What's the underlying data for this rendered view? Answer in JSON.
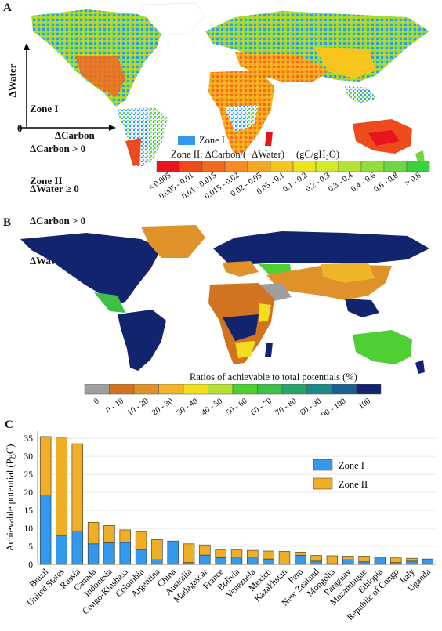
{
  "panels": {
    "a": "A",
    "b": "B",
    "c": "C"
  },
  "panel_a": {
    "zone1_lines": [
      "Zone I",
      "ΔCarbon > 0",
      "ΔWater ≥ 0"
    ],
    "zone2_lines": [
      "Zone II",
      "ΔCarbon > 0",
      "ΔWater < 0"
    ],
    "y_axis": "ΔWater",
    "x_axis": "ΔCarbon",
    "origin": "0",
    "zone1_legend": "Zone I",
    "zone1_color": "#3399ee",
    "zone2_title": "Zone II: ΔCarbon/(−ΔWater)",
    "zone2_unit": "(gC/gH₂O)",
    "bins": [
      "< 0.005",
      "0.005 - 0.01",
      "0.01 - 0.015",
      "0.015 - 0.02",
      "0.02 - 0.05",
      "0.05 - 0.1",
      "0.1 - 0.2",
      "0.2 - 0.3",
      "0.3 - 0.4",
      "0.4 - 0.6",
      "0.6 - 0.8",
      "> 0.8"
    ],
    "bin_colors": [
      "#e8141c",
      "#ee4a1c",
      "#f26a1e",
      "#f58b22",
      "#f7a61f",
      "#f7c51e",
      "#eee21f",
      "#d2ea2a",
      "#b3e432",
      "#93dd3a",
      "#6dd640",
      "#39d23f"
    ]
  },
  "panel_b": {
    "legend_title": "Ratios of achievable to total potentials (%)",
    "bins": [
      "0",
      "0 - 10",
      "10 - 20",
      "20 - 30",
      "30 - 40",
      "40 - 50",
      "50 - 60",
      "60 - 70",
      "70 - 80",
      "80 - 90",
      "90 - 100",
      "100"
    ],
    "bin_colors": [
      "#9e9e9e",
      "#d2741f",
      "#e0922a",
      "#f0b429",
      "#f2dd1f",
      "#b6e033",
      "#4fcf34",
      "#3dbf4a",
      "#25a56a",
      "#1d8a8a",
      "#1a5f8f",
      "#12246e"
    ]
  },
  "chart_data": {
    "type": "bar",
    "stacked": true,
    "ylabel": "Achievable potential (PgC)",
    "ylim": [
      0,
      37
    ],
    "yticks": [
      0,
      5,
      10,
      15,
      20,
      25,
      30,
      35
    ],
    "grid": true,
    "legend_position": "top-right",
    "categories": [
      "Brazil",
      "United States",
      "Russia",
      "Canada",
      "Indonesia",
      "Congo-Kinshasa",
      "Colombia",
      "Argentina",
      "China",
      "Australia",
      "Madagascar",
      "France",
      "Bolivia",
      "Venezuela",
      "Mexico",
      "Kazakhstan",
      "Peru",
      "New Zealand",
      "Mongolia",
      "Paraguay",
      "Mozambique",
      "Ethiopia",
      "Republic of Congo",
      "Italy",
      "Uganda"
    ],
    "series": [
      {
        "name": "Zone I",
        "color": "#3399ee",
        "values": [
          19.3,
          7.9,
          9.3,
          5.7,
          6.0,
          6.1,
          4.0,
          1.3,
          6.5,
          0.5,
          2.6,
          1.9,
          2.1,
          2.1,
          1.5,
          0.1,
          2.5,
          0.9,
          0.2,
          1.3,
          0.7,
          2.0,
          0.5,
          0.9,
          1.5
        ]
      },
      {
        "name": "Zone II",
        "color": "#f0ae27",
        "values": [
          16.2,
          27.4,
          24.2,
          6.0,
          4.8,
          3.5,
          5.0,
          5.6,
          0.0,
          5.2,
          2.8,
          2.1,
          1.9,
          1.8,
          2.2,
          3.5,
          0.9,
          1.6,
          2.2,
          1.0,
          1.6,
          0.0,
          1.3,
          0.8,
          0.0
        ]
      }
    ]
  }
}
